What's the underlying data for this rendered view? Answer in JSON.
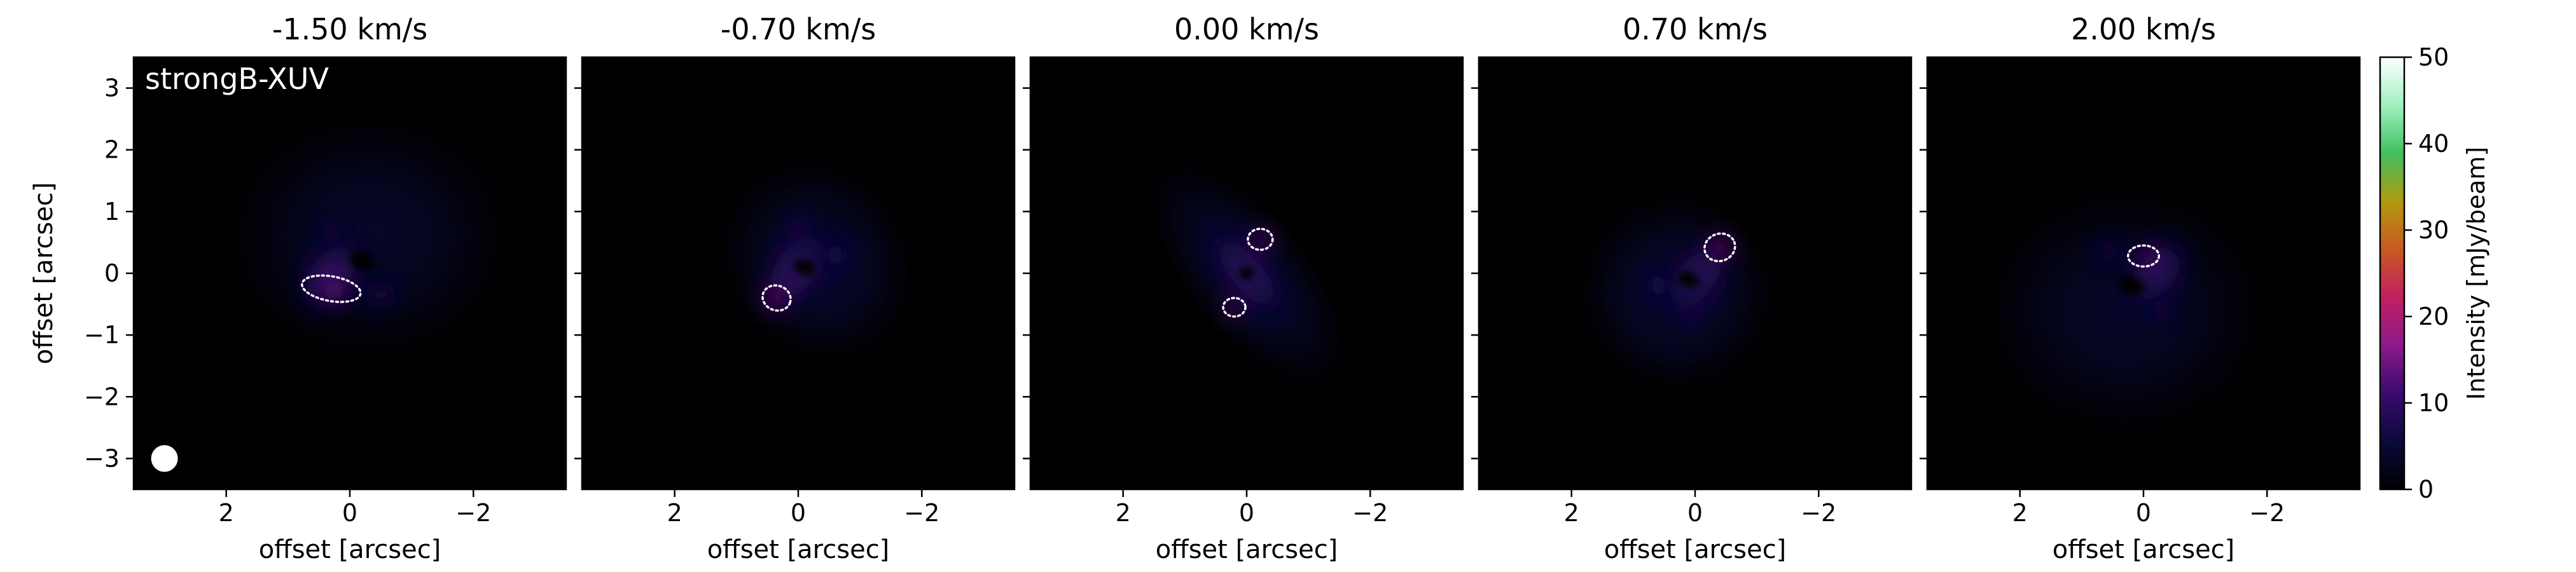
{
  "chart_data": {
    "type": "heatmap",
    "model_label": "strongB-XUV",
    "xlabel": "offset [arcsec]",
    "ylabel": "offset [arcsec]",
    "xlim": [
      3.5,
      -3.5
    ],
    "ylim": [
      -3.5,
      3.5
    ],
    "x_ticks": [
      2,
      0,
      -2
    ],
    "x_tick_labels": [
      "2",
      "0",
      "−2"
    ],
    "y_ticks": [
      3,
      2,
      1,
      0,
      -1,
      -2,
      -3
    ],
    "y_tick_labels": [
      "3",
      "2",
      "1",
      "0",
      "−1",
      "−2",
      "−3"
    ],
    "colorbar": {
      "label": "Intensity [mJy/beam]",
      "range": [
        0,
        50
      ],
      "ticks": [
        0,
        10,
        20,
        30,
        40,
        50
      ],
      "colormap": [
        "#000000",
        "#0a0a3c",
        "#3a0a6e",
        "#8c1a8c",
        "#c02060",
        "#c85a20",
        "#b09a10",
        "#40c060",
        "#a0f0c0",
        "#ffffff"
      ]
    },
    "contour_color": "#ffffff",
    "beam": {
      "x": 3.0,
      "y": -3.0
    },
    "panels": [
      {
        "title": "-1.50 km/s",
        "halo": {
          "x": -0.3,
          "y": 0.6,
          "sx": 2.3,
          "sy": 2.0,
          "amp": 4
        },
        "blobs": [
          {
            "x": 0.3,
            "y": 0.0,
            "sx": 0.55,
            "sy": 0.9,
            "amp": 12,
            "rot": -40
          },
          {
            "x": 0.25,
            "y": -0.28,
            "sx": 0.45,
            "sy": 0.22,
            "amp": 18,
            "rot": 10
          },
          {
            "x": 0.3,
            "y": 0.65,
            "sx": 0.3,
            "sy": 0.3,
            "amp": 9,
            "rot": 0
          },
          {
            "x": -0.5,
            "y": -0.35,
            "sx": 0.45,
            "sy": 0.3,
            "amp": 9,
            "rot": 20
          }
        ],
        "holes": [
          {
            "x": -0.2,
            "y": 0.2,
            "sx": 0.22,
            "sy": 0.14,
            "rot": -20
          }
        ],
        "contours": [
          {
            "x": 0.3,
            "y": -0.25,
            "rx": 0.48,
            "ry": 0.2,
            "rot": -10
          }
        ]
      },
      {
        "title": "-0.70 km/s",
        "halo": {
          "x": -0.3,
          "y": 0.2,
          "sx": 1.5,
          "sy": 1.7,
          "amp": 5,
          "rot": 35
        },
        "blobs": [
          {
            "x": 0.0,
            "y": 0.1,
            "sx": 0.6,
            "sy": 1.05,
            "amp": 11,
            "rot": -40
          },
          {
            "x": 0.35,
            "y": -0.4,
            "sx": 0.26,
            "sy": 0.26,
            "amp": 22,
            "rot": 0
          },
          {
            "x": 0.0,
            "y": 0.7,
            "sx": 0.28,
            "sy": 0.3,
            "amp": 10,
            "rot": 0
          },
          {
            "x": -0.6,
            "y": 0.3,
            "sx": 0.35,
            "sy": 0.5,
            "amp": 8,
            "rot": 0
          }
        ],
        "holes": [
          {
            "x": -0.1,
            "y": 0.1,
            "sx": 0.18,
            "sy": 0.12,
            "rot": -20
          }
        ],
        "contours": [
          {
            "x": 0.35,
            "y": -0.4,
            "rx": 0.23,
            "ry": 0.2,
            "rot": -20
          }
        ]
      },
      {
        "title": "0.00 km/s",
        "halo": {
          "x": 0.0,
          "y": 0.0,
          "sx": 1.0,
          "sy": 2.2,
          "amp": 5,
          "rot": 40
        },
        "blobs": [
          {
            "x": 0.0,
            "y": 0.0,
            "sx": 0.45,
            "sy": 1.25,
            "amp": 11,
            "rot": 40
          },
          {
            "x": -0.25,
            "y": 0.55,
            "sx": 0.22,
            "sy": 0.22,
            "amp": 20,
            "rot": 0
          },
          {
            "x": 0.2,
            "y": -0.55,
            "sx": 0.2,
            "sy": 0.2,
            "amp": 20,
            "rot": 0
          }
        ],
        "holes": [
          {
            "x": 0.0,
            "y": 0.0,
            "sx": 0.12,
            "sy": 0.1,
            "rot": 0
          }
        ],
        "contours": [
          {
            "x": -0.22,
            "y": 0.55,
            "rx": 0.2,
            "ry": 0.17,
            "rot": 0
          },
          {
            "x": 0.2,
            "y": -0.55,
            "rx": 0.18,
            "ry": 0.15,
            "rot": 0
          }
        ]
      },
      {
        "title": "0.70 km/s",
        "halo": {
          "x": 0.3,
          "y": -0.3,
          "sx": 1.6,
          "sy": 1.6,
          "amp": 5,
          "rot": 35
        },
        "blobs": [
          {
            "x": 0.0,
            "y": -0.1,
            "sx": 0.55,
            "sy": 1.0,
            "amp": 11,
            "rot": -40
          },
          {
            "x": -0.4,
            "y": 0.42,
            "sx": 0.26,
            "sy": 0.22,
            "amp": 23,
            "rot": 20
          },
          {
            "x": 0.05,
            "y": -0.6,
            "sx": 0.3,
            "sy": 0.28,
            "amp": 10,
            "rot": 0
          },
          {
            "x": 0.6,
            "y": -0.2,
            "sx": 0.35,
            "sy": 0.5,
            "amp": 8,
            "rot": 0
          }
        ],
        "holes": [
          {
            "x": 0.1,
            "y": -0.1,
            "sx": 0.18,
            "sy": 0.12,
            "rot": -20
          }
        ],
        "contours": [
          {
            "x": -0.4,
            "y": 0.42,
            "rx": 0.25,
            "ry": 0.22,
            "rot": 20
          }
        ]
      },
      {
        "title": "2.00 km/s",
        "halo": {
          "x": 0.3,
          "y": -0.6,
          "sx": 2.3,
          "sy": 2.0,
          "amp": 4
        },
        "blobs": [
          {
            "x": -0.2,
            "y": 0.0,
            "sx": 0.55,
            "sy": 0.9,
            "amp": 11,
            "rot": -40
          },
          {
            "x": -0.05,
            "y": 0.28,
            "sx": 0.28,
            "sy": 0.2,
            "amp": 18,
            "rot": 0
          },
          {
            "x": -0.3,
            "y": -0.6,
            "sx": 0.3,
            "sy": 0.3,
            "amp": 9,
            "rot": 0
          },
          {
            "x": 0.55,
            "y": 0.35,
            "sx": 0.45,
            "sy": 0.3,
            "amp": 8,
            "rot": 20
          }
        ],
        "holes": [
          {
            "x": 0.2,
            "y": -0.2,
            "sx": 0.22,
            "sy": 0.14,
            "rot": -20
          }
        ],
        "contours": [
          {
            "x": 0.0,
            "y": 0.28,
            "rx": 0.25,
            "ry": 0.17,
            "rot": 0
          }
        ]
      }
    ]
  }
}
